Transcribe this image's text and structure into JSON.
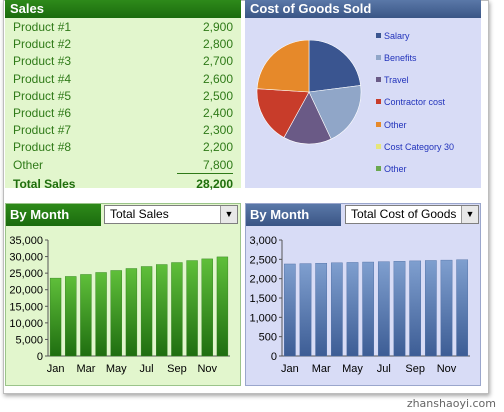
{
  "sales": {
    "title": "Sales",
    "rows": [
      {
        "label": "Product #1",
        "value": "2,900"
      },
      {
        "label": "Product #2",
        "value": "2,800"
      },
      {
        "label": "Product #3",
        "value": "2,700"
      },
      {
        "label": "Product #4",
        "value": "2,600"
      },
      {
        "label": "Product #5",
        "value": "2,500"
      },
      {
        "label": "Product #6",
        "value": "2,400"
      },
      {
        "label": "Product #7",
        "value": "2,300"
      },
      {
        "label": "Product #8",
        "value": "2,200"
      },
      {
        "label": "Other",
        "value": "7,800"
      }
    ],
    "total_label": "Total Sales",
    "total_value": "28,200"
  },
  "cogs": {
    "title": "Cost of Goods Sold"
  },
  "by_month_left": {
    "title": "By Month",
    "dropdown_value": "Total Sales"
  },
  "by_month_right": {
    "title": "By Month",
    "dropdown_value": "Total Cost of Goods"
  },
  "watermark": "zhanshaoyi.com",
  "colors": {
    "green_dark": "#1b6b0e",
    "blue_dark": "#3a5585",
    "green_bar": "#3f9b2a",
    "blue_bar": "#5f7fb3"
  },
  "chart_data": [
    {
      "type": "pie",
      "title": "",
      "categories": [
        "Salary",
        "Benefits",
        "Travel",
        "Contractor cost",
        "Other",
        "Cost Category 30",
        "Other"
      ],
      "values": [
        23,
        20,
        15,
        18,
        24,
        0,
        0
      ],
      "colors": [
        "#3a5590",
        "#90a6c8",
        "#6a5a86",
        "#c83c2a",
        "#e6892a",
        "#e6e67a",
        "#6aa84f"
      ],
      "legend": "right"
    },
    {
      "type": "bar",
      "title": "",
      "categories": [
        "Jan",
        "Feb",
        "Mar",
        "Apr",
        "May",
        "Jun",
        "Jul",
        "Aug",
        "Sep",
        "Oct",
        "Nov",
        "Dec"
      ],
      "x_tick_labels": [
        "Jan",
        "Mar",
        "May",
        "Jul",
        "Sep",
        "Nov"
      ],
      "values": [
        23500,
        24000,
        24600,
        25200,
        25800,
        26400,
        27000,
        27600,
        28200,
        28800,
        29300,
        29900
      ],
      "ylim": [
        0,
        35000
      ],
      "yticks": [
        "0",
        "5,000",
        "10,000",
        "15,000",
        "20,000",
        "25,000",
        "30,000",
        "35,000"
      ],
      "grid": false
    },
    {
      "type": "bar",
      "title": "",
      "categories": [
        "Jan",
        "Feb",
        "Mar",
        "Apr",
        "May",
        "Jun",
        "Jul",
        "Aug",
        "Sep",
        "Oct",
        "Nov",
        "Dec"
      ],
      "x_tick_labels": [
        "Jan",
        "Mar",
        "May",
        "Jul",
        "Sep",
        "Nov"
      ],
      "values": [
        2380,
        2390,
        2400,
        2410,
        2420,
        2430,
        2440,
        2450,
        2460,
        2470,
        2480,
        2490
      ],
      "ylim": [
        0,
        3000
      ],
      "yticks": [
        "0",
        "500",
        "1,000",
        "1,500",
        "2,000",
        "2,500",
        "3,000"
      ],
      "grid": false
    }
  ]
}
